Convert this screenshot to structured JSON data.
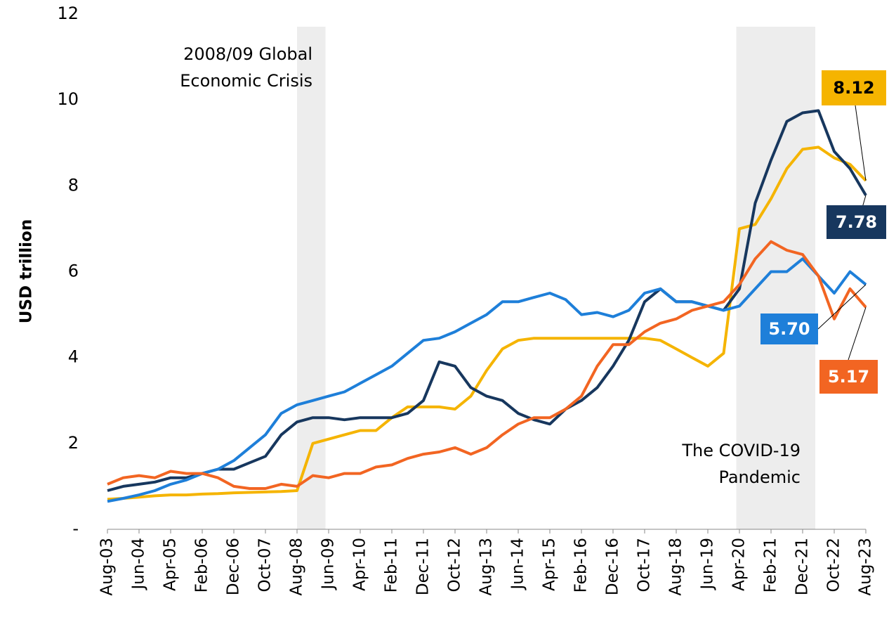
{
  "chart_data": {
    "type": "line",
    "y_label": "USD trillion",
    "categories": [
      "Aug-03",
      null,
      "Jun-04",
      null,
      "Apr-05",
      null,
      "Feb-06",
      null,
      "Dec-06",
      null,
      "Oct-07",
      null,
      "Aug-08",
      null,
      "Jun-09",
      null,
      "Apr-10",
      null,
      "Feb-11",
      null,
      "Dec-11",
      null,
      "Oct-12",
      null,
      "Aug-13",
      null,
      "Jun-14",
      null,
      "Apr-15",
      null,
      "Feb-16",
      null,
      "Dec-16",
      null,
      "Oct-17",
      null,
      "Aug-18",
      null,
      "Jun-19",
      null,
      "Apr-20",
      null,
      "Feb-21",
      null,
      "Dec-21",
      null,
      "Oct-22",
      null,
      "Aug-23"
    ],
    "series": [
      {
        "color": "#f5b400",
        "end_label": "8.12",
        "values": [
          0.7,
          0.72,
          0.75,
          0.78,
          0.8,
          0.8,
          0.82,
          0.83,
          0.85,
          0.86,
          0.87,
          0.88,
          0.9,
          2.0,
          2.1,
          2.2,
          2.3,
          2.3,
          2.6,
          2.85,
          2.85,
          2.85,
          2.8,
          3.1,
          3.7,
          4.2,
          4.4,
          4.45,
          4.45,
          4.45,
          4.45,
          4.45,
          4.45,
          4.45,
          4.45,
          4.4,
          4.2,
          4.0,
          3.8,
          4.1,
          7.0,
          7.1,
          7.7,
          8.4,
          8.85,
          8.9,
          8.65,
          8.5,
          8.12
        ]
      },
      {
        "color": "#17375e",
        "end_label": "7.78",
        "values": [
          0.9,
          1.0,
          1.05,
          1.1,
          1.2,
          1.2,
          1.3,
          1.4,
          1.4,
          1.55,
          1.7,
          2.2,
          2.5,
          2.6,
          2.6,
          2.55,
          2.6,
          2.6,
          2.6,
          2.7,
          3.0,
          3.9,
          3.8,
          3.3,
          3.1,
          3.0,
          2.7,
          2.55,
          2.45,
          2.8,
          3.0,
          3.3,
          3.8,
          4.4,
          5.3,
          5.6,
          5.3,
          5.3,
          5.2,
          5.1,
          5.6,
          7.6,
          8.6,
          9.5,
          9.7,
          9.75,
          8.8,
          8.4,
          7.78
        ]
      },
      {
        "color": "#1e7fd9",
        "end_label": "5.70",
        "values": [
          0.65,
          0.72,
          0.8,
          0.9,
          1.05,
          1.15,
          1.3,
          1.4,
          1.6,
          1.9,
          2.2,
          2.7,
          2.9,
          3.0,
          3.1,
          3.2,
          3.4,
          3.6,
          3.8,
          4.1,
          4.4,
          4.45,
          4.6,
          4.8,
          5.0,
          5.3,
          5.3,
          5.4,
          5.5,
          5.35,
          5.0,
          5.05,
          4.95,
          5.1,
          5.5,
          5.6,
          5.3,
          5.3,
          5.2,
          5.1,
          5.2,
          5.6,
          6.0,
          6.0,
          6.3,
          5.9,
          5.5,
          6.0,
          5.7
        ]
      },
      {
        "color": "#f26522",
        "end_label": "5.17",
        "values": [
          1.05,
          1.2,
          1.25,
          1.2,
          1.35,
          1.3,
          1.3,
          1.2,
          1.0,
          0.95,
          0.95,
          1.05,
          1.0,
          1.25,
          1.2,
          1.3,
          1.3,
          1.45,
          1.5,
          1.65,
          1.75,
          1.8,
          1.9,
          1.75,
          1.9,
          2.2,
          2.45,
          2.6,
          2.6,
          2.8,
          3.1,
          3.8,
          4.3,
          4.3,
          4.6,
          4.8,
          4.9,
          5.1,
          5.2,
          5.3,
          5.7,
          6.3,
          6.7,
          6.5,
          6.4,
          5.9,
          4.9,
          5.6,
          5.17
        ]
      }
    ],
    "ylim": [
      0,
      12
    ],
    "yticks": [
      {
        "value": 0,
        "label": "-"
      },
      2,
      4,
      6,
      8,
      10,
      12
    ],
    "shaded": [
      {
        "from": 12,
        "to": 13.8,
        "text": [
          "2008/09 Global",
          "Economic Crisis"
        ]
      },
      {
        "from": 39.8,
        "to": 44.8,
        "text": [
          "The COVID-19",
          "Pandemic"
        ]
      }
    ]
  }
}
